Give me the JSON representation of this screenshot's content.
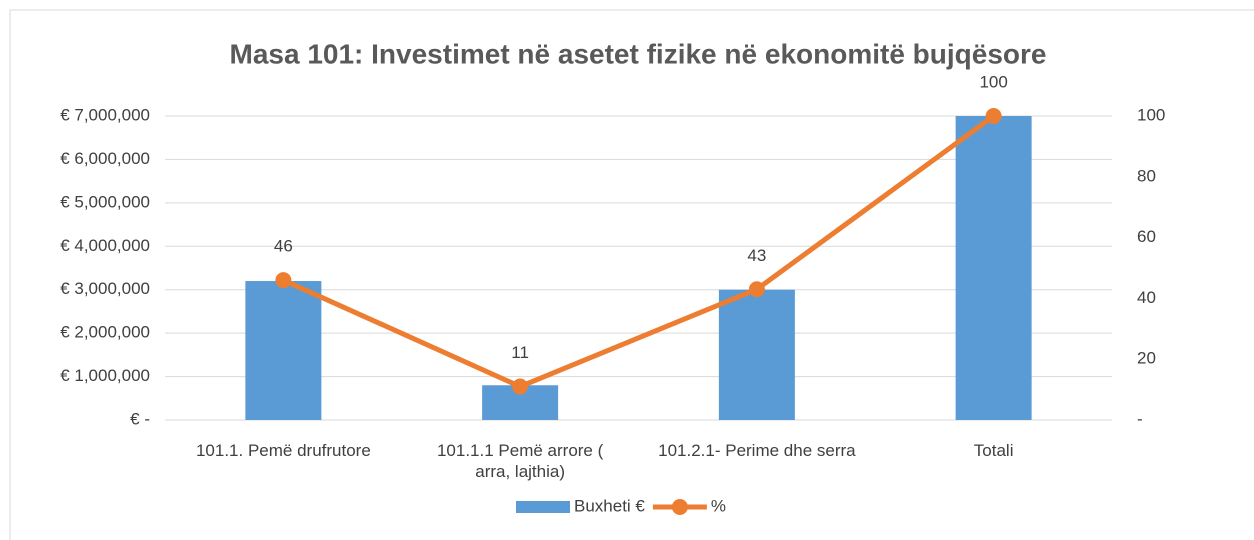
{
  "chart_data": {
    "type": "bar_line",
    "title": "Masa 101: Investimet në asetet fizike në ekonomitë bujqësore",
    "categories": [
      "101.1. Pemë drufrutore",
      "101.1.1 Pemë arrore ( arra, lajthia)",
      "101.2.1- Perime dhe serra",
      "Totali"
    ],
    "series": [
      {
        "name": "Buxheti €",
        "color": "#5b9bd5",
        "type": "bar",
        "values": [
          3200000,
          800000,
          3000000,
          7000000
        ]
      },
      {
        "name": "%",
        "color": "#ed7d31",
        "type": "line",
        "axis": "y2",
        "values": [
          46,
          11,
          43,
          100
        ]
      }
    ],
    "ylim": [
      0,
      7000000
    ],
    "yticks": [
      {
        "value": 0,
        "label": "€ -"
      },
      {
        "value": 1000000,
        "label": "€ 1,000,000"
      },
      {
        "value": 2000000,
        "label": "€ 2,000,000"
      },
      {
        "value": 3000000,
        "label": "€ 3,000,000"
      },
      {
        "value": 4000000,
        "label": "€ 4,000,000"
      },
      {
        "value": 5000000,
        "label": "€ 5,000,000"
      },
      {
        "value": 6000000,
        "label": "€ 6,000,000"
      },
      {
        "value": 7000000,
        "label": "€ 7,000,000"
      }
    ],
    "y2lim": [
      0,
      100
    ],
    "y2ticks": [
      {
        "value": 0,
        "label": "-"
      },
      20,
      40,
      60,
      80,
      100
    ],
    "grid": true,
    "legend": "bottom"
  }
}
